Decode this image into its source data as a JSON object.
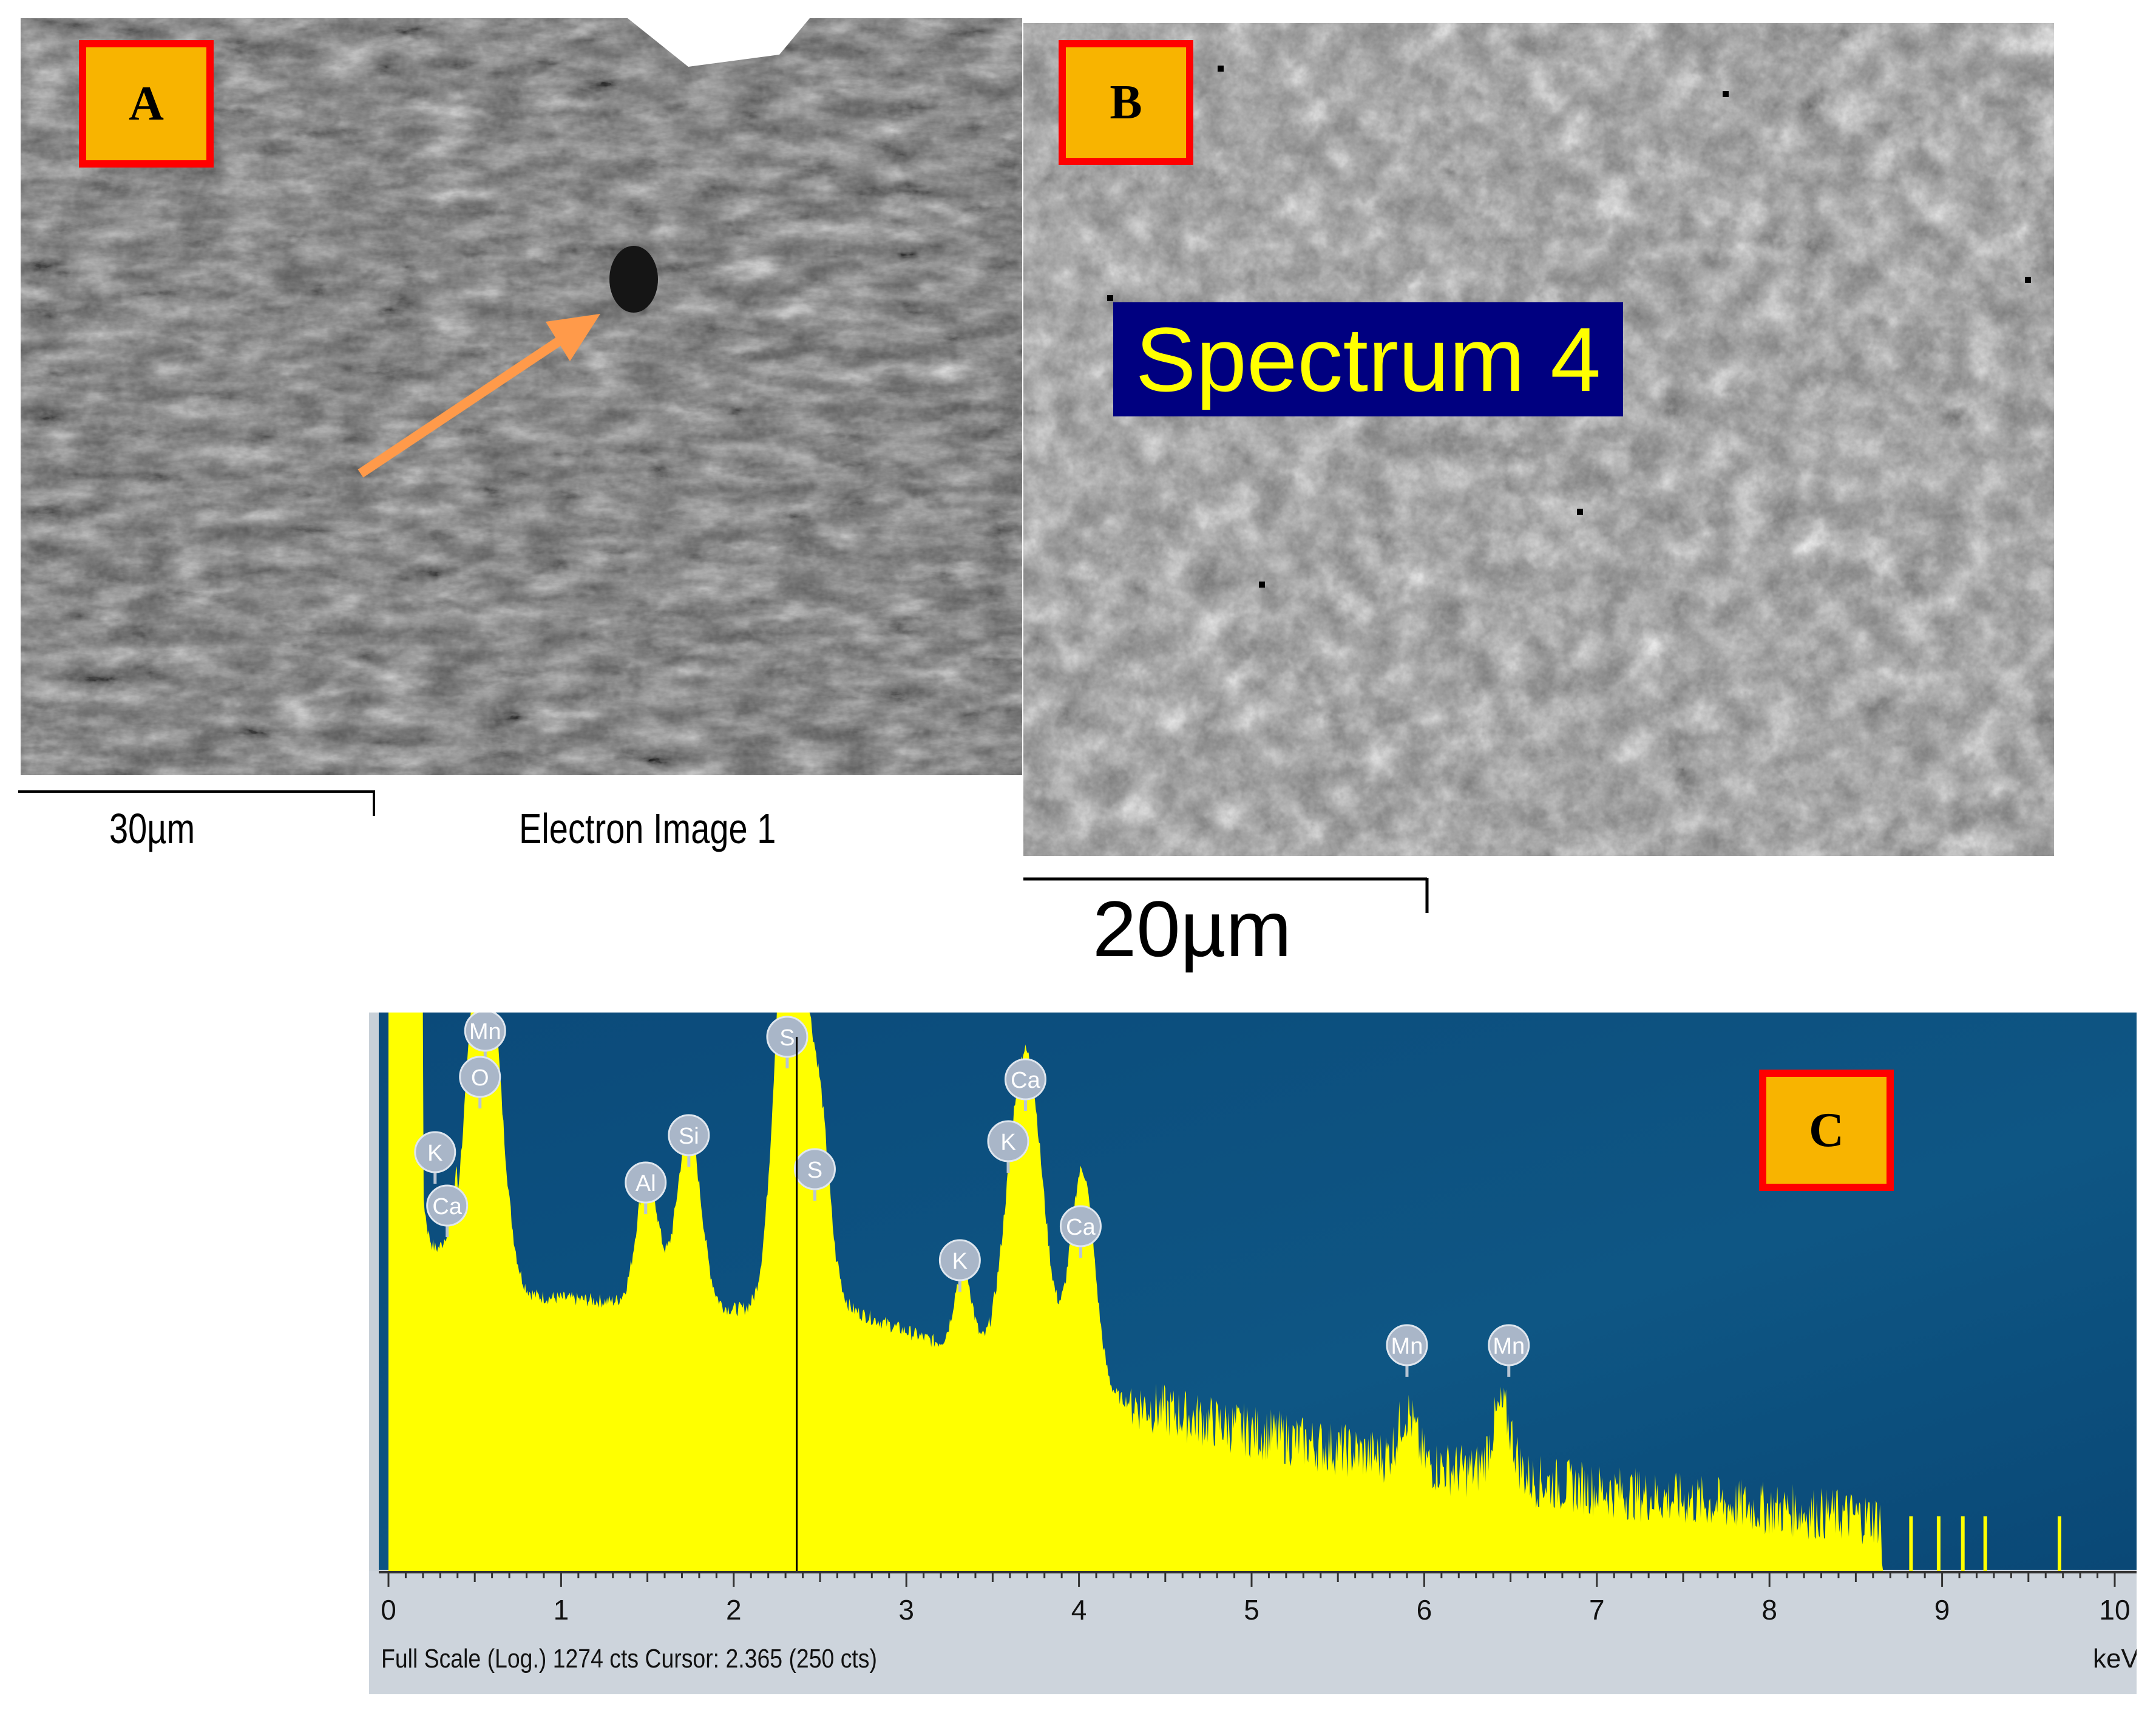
{
  "panels": {
    "a": {
      "label": "A",
      "scale_bar": "30µm",
      "image_title": "Electron Image 1"
    },
    "b": {
      "label": "B",
      "spectrum_label": "Spectrum 4",
      "scale_bar": "20µm"
    },
    "c": {
      "label": "C",
      "footer_left": "Full Scale (Log.) 1274 cts Cursor: 2.365  (250 cts)",
      "x_unit": "keV",
      "cursor_keV": 2.365
    }
  },
  "colors": {
    "label_fill": "#f8b400",
    "label_border": "#ff0000",
    "spectrum_box": "#000080",
    "spectrum_text": "#ffff00",
    "edx_background": "#0d4c7c",
    "edx_fill": "#ffff00",
    "arrow": "#ff9a4a"
  },
  "chart_data": {
    "type": "area",
    "x_range": [
      0,
      10
    ],
    "x_ticks": [
      "0",
      "1",
      "2",
      "3",
      "4",
      "5",
      "6",
      "7",
      "8",
      "9",
      "10"
    ],
    "xlabel": "keV",
    "yscale": "log",
    "peaks": [
      {
        "element": "K",
        "keV": 0.27
      },
      {
        "element": "Ca",
        "keV": 0.34
      },
      {
        "element": "Mn",
        "keV": 0.56
      },
      {
        "element": "O",
        "keV": 0.53
      },
      {
        "element": "Al",
        "keV": 1.49
      },
      {
        "element": "Si",
        "keV": 1.74
      },
      {
        "element": "S",
        "keV": 2.31
      },
      {
        "element": "S",
        "keV": 2.47
      },
      {
        "element": "K",
        "keV": 3.31
      },
      {
        "element": "K",
        "keV": 3.59
      },
      {
        "element": "Ca",
        "keV": 3.69
      },
      {
        "element": "Ca",
        "keV": 4.01
      },
      {
        "element": "Mn",
        "keV": 5.9
      },
      {
        "element": "Mn",
        "keV": 6.49
      }
    ]
  }
}
